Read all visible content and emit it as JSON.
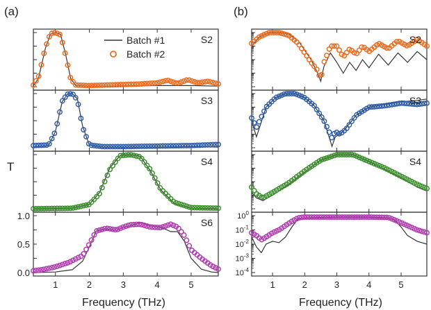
{
  "panel_labels": {
    "a": "(a)",
    "b": "(b)"
  },
  "y_axis_label": "T",
  "x_axis_label": "Frequency (THz)",
  "legend": {
    "line_label": "Batch #1",
    "marker_label": "Batch #2",
    "placement": "top-right of panel (a) S2"
  },
  "colors": {
    "line": "#333333",
    "S2": "#ee6a1c",
    "S3": "#2f5ea8",
    "S4": "#3a8f2a",
    "S6": "#b03ab0",
    "frame": "#333333"
  },
  "chart_data": [
    {
      "panel": "a",
      "type": "line",
      "scale": "linear",
      "x_ticks": [
        1,
        2,
        3,
        4,
        5
      ],
      "xlim": [
        0.35,
        5.8
      ],
      "subplots": [
        {
          "label": "S2",
          "ylim": [
            0,
            1
          ],
          "series": [
            {
              "name": "Batch #1",
              "x": [
                0.35,
                0.5,
                0.7,
                0.85,
                1.0,
                1.15,
                1.3,
                1.45,
                1.6,
                2.0,
                3.0,
                4.0,
                5.0,
                5.8
              ],
              "y": [
                0.02,
                0.15,
                0.7,
                0.97,
                1.0,
                0.97,
                0.6,
                0.15,
                0.02,
                0.01,
                0.01,
                0.02,
                0.02,
                0.01
              ]
            },
            {
              "name": "Batch #2",
              "x": [
                0.35,
                0.5,
                0.7,
                0.85,
                1.0,
                1.15,
                1.3,
                1.45,
                1.6,
                2.0,
                2.5,
                3.0,
                3.5,
                4.0,
                4.3,
                4.6,
                4.9,
                5.2,
                5.5,
                5.8
              ],
              "y": [
                0.03,
                0.18,
                0.72,
                0.98,
                1.0,
                0.96,
                0.58,
                0.14,
                0.03,
                0.02,
                0.03,
                0.04,
                0.05,
                0.07,
                0.12,
                0.06,
                0.13,
                0.07,
                0.1,
                0.05
              ]
            }
          ]
        },
        {
          "label": "S3",
          "ylim": [
            0,
            1
          ],
          "series": [
            {
              "name": "Batch #1",
              "x": [
                0.35,
                0.8,
                1.0,
                1.2,
                1.35,
                1.5,
                1.65,
                1.8,
                2.0,
                2.4,
                3.0,
                4.0,
                5.0,
                5.8
              ],
              "y": [
                0.01,
                0.04,
                0.3,
                0.85,
                0.99,
                1.0,
                0.9,
                0.4,
                0.05,
                0.01,
                0.01,
                0.01,
                0.02,
                0.01
              ]
            },
            {
              "name": "Batch #2",
              "x": [
                0.35,
                0.8,
                1.0,
                1.2,
                1.35,
                1.5,
                1.65,
                1.8,
                2.0,
                2.4,
                3.0,
                4.0,
                5.0,
                5.8
              ],
              "y": [
                0.04,
                0.05,
                0.3,
                0.86,
                0.99,
                1.0,
                0.88,
                0.38,
                0.05,
                0.02,
                0.02,
                0.03,
                0.04,
                0.06
              ]
            }
          ]
        },
        {
          "label": "S4",
          "ylim": [
            0,
            1
          ],
          "series": [
            {
              "name": "Batch #1",
              "x": [
                0.35,
                1.5,
                2.0,
                2.3,
                2.6,
                2.9,
                3.2,
                3.5,
                3.8,
                4.1,
                4.5,
                5.0,
                5.8
              ],
              "y": [
                0.0,
                0.01,
                0.08,
                0.3,
                0.75,
                0.98,
                1.0,
                0.97,
                0.7,
                0.35,
                0.1,
                0.01,
                0.0
              ]
            },
            {
              "name": "Batch #2",
              "x": [
                0.35,
                1.5,
                2.0,
                2.3,
                2.6,
                2.9,
                3.2,
                3.5,
                3.8,
                4.1,
                4.5,
                5.0,
                5.8
              ],
              "y": [
                0.0,
                0.01,
                0.08,
                0.28,
                0.72,
                0.98,
                1.0,
                0.96,
                0.72,
                0.37,
                0.12,
                0.02,
                0.01
              ]
            }
          ]
        },
        {
          "label": "S6",
          "ylim": [
            0,
            1.0
          ],
          "y_ticks": [
            0.0,
            0.5,
            1.0
          ],
          "series": [
            {
              "name": "Batch #1",
              "x": [
                0.35,
                1.0,
                1.5,
                1.8,
                2.0,
                2.2,
                2.5,
                2.8,
                3.0,
                3.2,
                3.5,
                3.8,
                4.1,
                4.4,
                4.6,
                4.8,
                5.0,
                5.3,
                5.6,
                5.8
              ],
              "y": [
                0.0,
                0.01,
                0.05,
                0.2,
                0.45,
                0.73,
                0.77,
                0.74,
                0.8,
                0.82,
                0.88,
                0.82,
                0.8,
                0.72,
                0.72,
                0.55,
                0.25,
                0.06,
                0.01,
                0.0
              ]
            },
            {
              "name": "Batch #2",
              "x": [
                0.35,
                0.6,
                1.0,
                1.4,
                1.8,
                2.0,
                2.2,
                2.5,
                2.8,
                3.0,
                3.2,
                3.5,
                3.8,
                4.1,
                4.4,
                4.6,
                4.8,
                5.0,
                5.3,
                5.6,
                5.8
              ],
              "y": [
                0.03,
                0.05,
                0.1,
                0.18,
                0.3,
                0.5,
                0.73,
                0.78,
                0.75,
                0.8,
                0.84,
                0.85,
                0.8,
                0.79,
                0.85,
                0.8,
                0.65,
                0.4,
                0.25,
                0.12,
                0.06
              ]
            }
          ]
        }
      ]
    },
    {
      "panel": "b",
      "type": "line",
      "scale": "log",
      "x_ticks": [
        1,
        2,
        3,
        4,
        5
      ],
      "xlim": [
        0.35,
        5.8
      ],
      "subplots": [
        {
          "label": "S2",
          "ylim_log": [
            -4,
            0
          ],
          "series": [
            {
              "name": "Batch #1",
              "x": [
                0.35,
                0.6,
                0.9,
                1.2,
                1.5,
                1.8,
                2.0,
                2.2,
                2.4,
                2.5,
                2.6,
                2.8,
                3.0,
                3.2,
                3.4,
                3.6,
                3.8,
                4.0,
                4.3,
                4.6,
                4.9,
                5.2,
                5.5,
                5.8
              ],
              "y": [
                -1.0,
                -0.3,
                0.0,
                0.0,
                -0.1,
                -0.6,
                -1.3,
                -2.0,
                -3.0,
                -3.6,
                -2.5,
                -1.5,
                -2.2,
                -3.0,
                -2.2,
                -2.8,
                -2.0,
                -2.6,
                -1.6,
                -2.4,
                -1.5,
                -2.2,
                -1.4,
                -2.0
              ]
            },
            {
              "name": "Batch #2",
              "x": [
                0.35,
                0.6,
                0.9,
                1.2,
                1.5,
                1.8,
                2.0,
                2.2,
                2.4,
                2.5,
                2.6,
                2.8,
                3.0,
                3.2,
                3.4,
                3.6,
                3.8,
                4.0,
                4.3,
                4.6,
                4.9,
                5.2,
                5.5,
                5.8
              ],
              "y": [
                -0.8,
                -0.3,
                0.0,
                0.0,
                -0.2,
                -0.8,
                -1.5,
                -2.2,
                -2.8,
                -3.5,
                -2.2,
                -1.0,
                -1.0,
                -1.8,
                -1.2,
                -1.6,
                -1.0,
                -1.4,
                -0.8,
                -1.2,
                -0.6,
                -1.0,
                -0.5,
                -1.0
              ]
            }
          ]
        },
        {
          "label": "S3",
          "ylim_log": [
            -4,
            0
          ],
          "series": [
            {
              "name": "Batch #1",
              "x": [
                0.35,
                0.5,
                0.8,
                1.1,
                1.4,
                1.7,
                2.0,
                2.3,
                2.6,
                2.85,
                2.95,
                3.1,
                3.3,
                3.6,
                4.0,
                4.5,
                5.0,
                5.5,
                5.8
              ],
              "y": [
                -2.0,
                -3.2,
                -1.0,
                -0.3,
                0.0,
                0.0,
                -0.3,
                -0.9,
                -2.0,
                -3.9,
                -3.2,
                -3.0,
                -2.5,
                -1.6,
                -1.0,
                -0.8,
                -0.6,
                -0.5,
                -0.4
              ]
            },
            {
              "name": "Batch #2",
              "x": [
                0.35,
                0.5,
                0.8,
                1.1,
                1.4,
                1.7,
                2.0,
                2.3,
                2.6,
                2.85,
                2.95,
                3.1,
                3.3,
                3.6,
                4.0,
                4.5,
                5.0,
                5.5,
                5.8
              ],
              "y": [
                -1.8,
                -2.5,
                -1.0,
                -0.3,
                0.0,
                0.0,
                -0.3,
                -0.9,
                -2.0,
                -3.3,
                -2.8,
                -3.0,
                -2.6,
                -1.6,
                -1.0,
                -0.9,
                -0.7,
                -0.8,
                -0.7
              ]
            }
          ]
        },
        {
          "label": "S4",
          "ylim_log": [
            -4,
            0
          ],
          "series": [
            {
              "name": "Batch #1",
              "x": [
                0.35,
                0.5,
                0.7,
                1.0,
                1.5,
                2.0,
                2.5,
                3.0,
                3.5,
                4.0,
                4.5,
                5.0,
                5.5,
                5.8
              ],
              "y": [
                -2.8,
                -3.2,
                -3.4,
                -3.0,
                -2.2,
                -1.3,
                -0.4,
                0.0,
                0.0,
                -0.5,
                -1.1,
                -1.7,
                -2.4,
                -2.7
              ]
            },
            {
              "name": "Batch #2",
              "x": [
                0.35,
                0.5,
                0.7,
                1.0,
                1.5,
                2.0,
                2.5,
                3.0,
                3.5,
                4.0,
                4.5,
                5.0,
                5.5,
                5.8
              ],
              "y": [
                -2.4,
                -2.9,
                -3.2,
                -2.8,
                -2.1,
                -1.2,
                -0.4,
                0.0,
                0.0,
                -0.5,
                -1.0,
                -1.6,
                -2.2,
                -2.5
              ]
            }
          ]
        },
        {
          "label": "",
          "ylim_log": [
            -4,
            0
          ],
          "y_ticks_log": [
            -4,
            -3,
            -2,
            -1,
            0
          ],
          "y_tick_labels": [
            "10-4",
            "10-3",
            "10-2",
            "10-1",
            "100"
          ],
          "series": [
            {
              "name": "Batch #1",
              "x": [
                0.35,
                0.5,
                0.65,
                0.8,
                1.0,
                1.2,
                1.4,
                1.6,
                1.8,
                2.0,
                3.0,
                4.0,
                4.6,
                4.8,
                5.0,
                5.2,
                5.5,
                5.8
              ],
              "y": [
                -1.5,
                -2.2,
                -2.6,
                -2.0,
                -1.8,
                -1.9,
                -1.5,
                -0.8,
                -0.2,
                -0.15,
                -0.1,
                -0.1,
                -0.15,
                -0.3,
                -0.8,
                -1.4,
                -1.8,
                -2.0
              ]
            },
            {
              "name": "Batch #2",
              "x": [
                0.35,
                0.5,
                0.65,
                0.8,
                1.0,
                1.2,
                1.4,
                1.6,
                1.8,
                2.0,
                3.0,
                4.0,
                4.6,
                4.8,
                5.0,
                5.2,
                5.5,
                5.8
              ],
              "y": [
                -1.2,
                -1.4,
                -1.7,
                -1.5,
                -1.2,
                -1.0,
                -0.7,
                -0.4,
                -0.15,
                -0.1,
                -0.1,
                -0.1,
                -0.12,
                -0.3,
                -0.5,
                -0.7,
                -1.0,
                -1.2
              ]
            }
          ]
        }
      ]
    }
  ]
}
